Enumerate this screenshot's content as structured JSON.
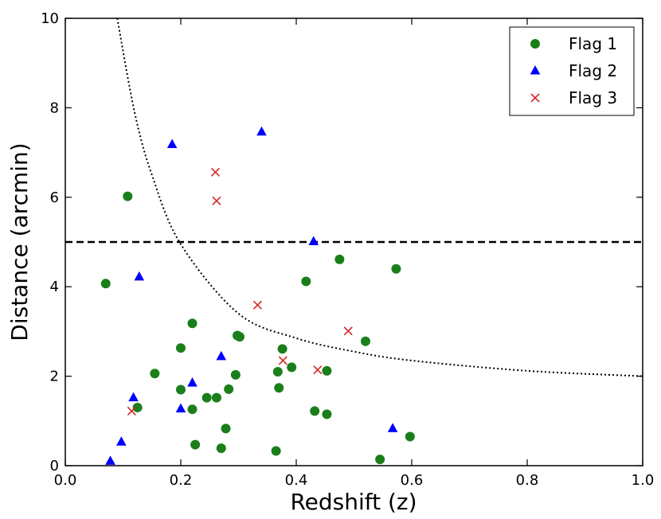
{
  "chart_data": {
    "type": "scatter",
    "title": "",
    "xlabel": "Redshift (z)",
    "ylabel": "Distance (arcmin)",
    "xlim": [
      0.0,
      1.0
    ],
    "ylim": [
      0,
      10
    ],
    "x_ticks": [
      0.0,
      0.2,
      0.4,
      0.6,
      0.8,
      1.0
    ],
    "x_tick_labels": [
      "0.0",
      "0.2",
      "0.4",
      "0.6",
      "0.8",
      "1.0"
    ],
    "y_ticks": [
      0,
      2,
      4,
      6,
      8,
      10
    ],
    "y_tick_labels": [
      "0",
      "2",
      "4",
      "6",
      "8",
      "10"
    ],
    "grid": false,
    "legend_position": "top-right",
    "series": [
      {
        "name": "Flag 1",
        "marker": "circle",
        "color": "#1a7f1a",
        "points": [
          [
            0.07,
            4.07
          ],
          [
            0.108,
            6.02
          ],
          [
            0.125,
            1.3
          ],
          [
            0.155,
            2.06
          ],
          [
            0.2,
            2.63
          ],
          [
            0.2,
            1.7
          ],
          [
            0.22,
            3.18
          ],
          [
            0.22,
            1.26
          ],
          [
            0.225,
            0.47
          ],
          [
            0.245,
            1.52
          ],
          [
            0.262,
            1.52
          ],
          [
            0.27,
            0.39
          ],
          [
            0.278,
            0.83
          ],
          [
            0.283,
            1.71
          ],
          [
            0.295,
            2.03
          ],
          [
            0.298,
            2.91
          ],
          [
            0.302,
            2.88
          ],
          [
            0.365,
            0.33
          ],
          [
            0.368,
            2.1
          ],
          [
            0.37,
            1.74
          ],
          [
            0.376,
            2.61
          ],
          [
            0.392,
            2.2
          ],
          [
            0.417,
            4.12
          ],
          [
            0.432,
            1.22
          ],
          [
            0.453,
            2.12
          ],
          [
            0.453,
            1.15
          ],
          [
            0.475,
            4.61
          ],
          [
            0.52,
            2.78
          ],
          [
            0.545,
            0.14
          ],
          [
            0.573,
            4.4
          ],
          [
            0.597,
            0.65
          ]
        ]
      },
      {
        "name": "Flag 2",
        "marker": "triangle",
        "color": "#0000ff",
        "points": [
          [
            0.078,
            0.1
          ],
          [
            0.097,
            0.53
          ],
          [
            0.118,
            1.52
          ],
          [
            0.128,
            4.22
          ],
          [
            0.185,
            7.18
          ],
          [
            0.2,
            1.27
          ],
          [
            0.22,
            1.85
          ],
          [
            0.27,
            2.44
          ],
          [
            0.34,
            7.46
          ],
          [
            0.43,
            5.01
          ],
          [
            0.567,
            0.83
          ]
        ]
      },
      {
        "name": "Flag 3",
        "marker": "x",
        "color": "#d62728",
        "points": [
          [
            0.115,
            1.22
          ],
          [
            0.26,
            6.56
          ],
          [
            0.262,
            5.92
          ],
          [
            0.333,
            3.59
          ],
          [
            0.377,
            2.35
          ],
          [
            0.437,
            2.14
          ],
          [
            0.49,
            3.01
          ]
        ]
      }
    ],
    "reference_lines": [
      {
        "kind": "horizontal",
        "style": "dashed",
        "color": "#000000",
        "y": 5
      },
      {
        "kind": "curve",
        "style": "dotted",
        "color": "#000000",
        "formula": "y = 1/(tan(0.85 degree) * comoving_distance(z)) scaled",
        "approx_points": [
          [
            0.09,
            10
          ],
          [
            0.12,
            7.9
          ],
          [
            0.15,
            6.5
          ],
          [
            0.2,
            4.95
          ],
          [
            0.3,
            3.4
          ],
          [
            0.4,
            2.85
          ],
          [
            0.5,
            2.55
          ],
          [
            0.6,
            2.35
          ],
          [
            0.8,
            2.12
          ],
          [
            1.0,
            2.0
          ]
        ]
      }
    ]
  }
}
